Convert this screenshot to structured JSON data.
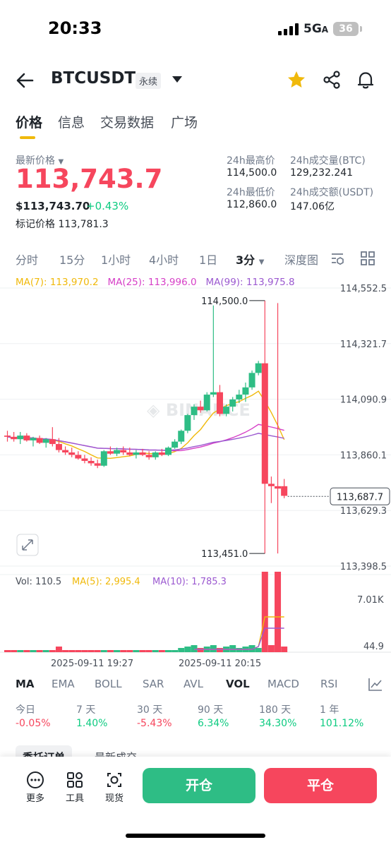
{
  "status_bar": {
    "time": "20:33",
    "network": "5G",
    "network_suffix": "A",
    "battery": "36"
  },
  "header": {
    "symbol": "BTCUSDT",
    "contract_type": "永续",
    "favorite": true
  },
  "tabs": [
    {
      "label": "价格",
      "active": true
    },
    {
      "label": "信息"
    },
    {
      "label": "交易数据"
    },
    {
      "label": "广场"
    }
  ],
  "price": {
    "last_label": "最新价格",
    "last": "113,743.7",
    "usd": "$113,743.70",
    "change": "+0.43%",
    "mark_label": "标记价格",
    "mark": "113,781.3"
  },
  "stats": {
    "high_label": "24h最高价",
    "high": "114,500.0",
    "vol_btc_label": "24h成交量(BTC)",
    "vol_btc": "129,232.241",
    "low_label": "24h最低价",
    "low": "112,860.0",
    "vol_usdt_label": "24h成交额(USDT)",
    "vol_usdt": "147.06亿"
  },
  "intervals": [
    {
      "label": "分时"
    },
    {
      "label": "15分"
    },
    {
      "label": "1小时"
    },
    {
      "label": "4小时"
    },
    {
      "label": "1日"
    },
    {
      "label": "3分",
      "selected": true
    },
    {
      "label": "深度图"
    }
  ],
  "ma": {
    "ma7": "MA(7): 113,970.2",
    "ma25": "MA(25): 113,996.0",
    "ma99": "MA(99): 113,975.8",
    "color_ma7": "#f0b90b",
    "color_ma25": "#d63fc7",
    "color_ma99": "#9b59d0"
  },
  "chart_data": {
    "type": "candlestick",
    "y_ticks": [
      "114,552.5",
      "114,321.7",
      "114,090.9",
      "113,860.1",
      "113,629.3",
      "113,398.5"
    ],
    "y_range": [
      113398.5,
      114552.5
    ],
    "high_marker": "114,500.0",
    "low_marker": "113,451.0",
    "current_price": "113,687.7",
    "candles": [
      {
        "o": 113940,
        "h": 113960,
        "l": 113915,
        "c": 113935
      },
      {
        "o": 113935,
        "h": 113955,
        "l": 113915,
        "c": 113925
      },
      {
        "o": 113925,
        "h": 113955,
        "l": 113905,
        "c": 113940
      },
      {
        "o": 113940,
        "h": 113950,
        "l": 113915,
        "c": 113920
      },
      {
        "o": 113920,
        "h": 113935,
        "l": 113895,
        "c": 113930
      },
      {
        "o": 113930,
        "h": 113940,
        "l": 113905,
        "c": 113910
      },
      {
        "o": 113910,
        "h": 113930,
        "l": 113890,
        "c": 113925
      },
      {
        "o": 113925,
        "h": 113975,
        "l": 113895,
        "c": 113905
      },
      {
        "o": 113905,
        "h": 113930,
        "l": 113870,
        "c": 113880
      },
      {
        "o": 113880,
        "h": 113895,
        "l": 113860,
        "c": 113870
      },
      {
        "o": 113870,
        "h": 113890,
        "l": 113850,
        "c": 113860
      },
      {
        "o": 113860,
        "h": 113875,
        "l": 113840,
        "c": 113845
      },
      {
        "o": 113845,
        "h": 113860,
        "l": 113825,
        "c": 113835
      },
      {
        "o": 113835,
        "h": 113850,
        "l": 113815,
        "c": 113825
      },
      {
        "o": 113825,
        "h": 113840,
        "l": 113805,
        "c": 113815
      },
      {
        "o": 113815,
        "h": 113880,
        "l": 113810,
        "c": 113875
      },
      {
        "o": 113875,
        "h": 113895,
        "l": 113860,
        "c": 113865
      },
      {
        "o": 113865,
        "h": 113890,
        "l": 113855,
        "c": 113880
      },
      {
        "o": 113880,
        "h": 113895,
        "l": 113860,
        "c": 113870
      },
      {
        "o": 113870,
        "h": 113890,
        "l": 113855,
        "c": 113860
      },
      {
        "o": 113860,
        "h": 113880,
        "l": 113845,
        "c": 113870
      },
      {
        "o": 113870,
        "h": 113885,
        "l": 113855,
        "c": 113860
      },
      {
        "o": 113860,
        "h": 113875,
        "l": 113840,
        "c": 113850
      },
      {
        "o": 113850,
        "h": 113875,
        "l": 113840,
        "c": 113870
      },
      {
        "o": 113870,
        "h": 113885,
        "l": 113855,
        "c": 113860
      },
      {
        "o": 113860,
        "h": 113895,
        "l": 113855,
        "c": 113890
      },
      {
        "o": 113890,
        "h": 113925,
        "l": 113885,
        "c": 113915
      },
      {
        "o": 113915,
        "h": 113965,
        "l": 113905,
        "c": 113960
      },
      {
        "o": 113960,
        "h": 114030,
        "l": 113950,
        "c": 114025
      },
      {
        "o": 114025,
        "h": 114070,
        "l": 114005,
        "c": 114060
      },
      {
        "o": 114060,
        "h": 114085,
        "l": 114035,
        "c": 114045
      },
      {
        "o": 114045,
        "h": 114120,
        "l": 114040,
        "c": 114110
      },
      {
        "o": 114110,
        "h": 114480,
        "l": 114100,
        "c": 114120
      },
      {
        "o": 114120,
        "h": 114150,
        "l": 114020,
        "c": 114030
      },
      {
        "o": 114030,
        "h": 114070,
        "l": 114020,
        "c": 114060
      },
      {
        "o": 114060,
        "h": 114100,
        "l": 114040,
        "c": 114090
      },
      {
        "o": 114090,
        "h": 114130,
        "l": 114075,
        "c": 114110
      },
      {
        "o": 114110,
        "h": 114160,
        "l": 114080,
        "c": 114140
      },
      {
        "o": 114140,
        "h": 114210,
        "l": 114130,
        "c": 114200
      },
      {
        "o": 114200,
        "h": 114250,
        "l": 114190,
        "c": 114240
      },
      {
        "o": 114240,
        "h": 114500,
        "l": 113451,
        "c": 113740
      },
      {
        "o": 113740,
        "h": 113770,
        "l": 113660,
        "c": 113730
      },
      {
        "o": 113730,
        "h": 114490,
        "l": 113451,
        "c": 113720
      },
      {
        "o": 113730,
        "h": 113760,
        "l": 113680,
        "c": 113690
      }
    ],
    "vol_label": "Vol: 110.5",
    "vol_ma5": "MA(5): 2,995.4",
    "vol_ma10": "MA(10): 1,785.3",
    "vol_ticks": [
      "7.01K",
      "44.9"
    ],
    "x_labels": [
      "2025-09-11 19:27",
      "2025-09-11 20:15"
    ]
  },
  "indicators": [
    {
      "label": "MA",
      "active": true
    },
    {
      "label": "EMA"
    },
    {
      "label": "BOLL"
    },
    {
      "label": "SAR"
    },
    {
      "label": "AVL"
    },
    {
      "label": "VOL",
      "active": true
    },
    {
      "label": "MACD"
    },
    {
      "label": "RSI"
    }
  ],
  "performance": [
    {
      "label": "今日",
      "value": "-0.05%",
      "dir": "down"
    },
    {
      "label": "7 天",
      "value": "1.40%",
      "dir": "up"
    },
    {
      "label": "30 天",
      "value": "-5.43%",
      "dir": "down"
    },
    {
      "label": "90 天",
      "value": "6.34%",
      "dir": "up"
    },
    {
      "label": "180 天",
      "value": "34.30%",
      "dir": "up"
    },
    {
      "label": "1 年",
      "value": "101.12%",
      "dir": "up"
    }
  ],
  "toolbar": {
    "more": "更多",
    "tools": "工具",
    "spot": "现货",
    "open": "开仓",
    "close": "平仓",
    "color_open": "#2ebd85",
    "color_close": "#f6465d"
  },
  "bottom_tabs": [
    "委托订单",
    "最新成交"
  ]
}
